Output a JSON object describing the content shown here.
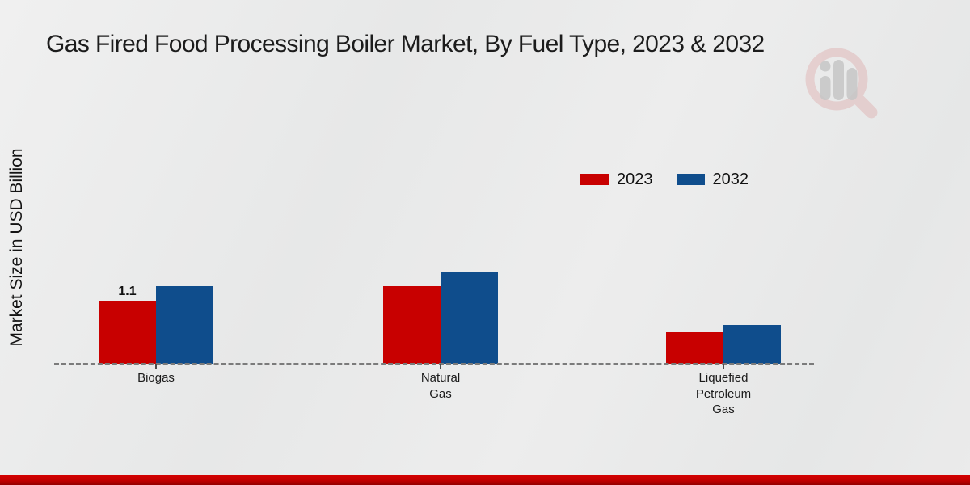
{
  "chart_data": {
    "type": "bar",
    "title": "Gas Fired Food Processing Boiler Market, By Fuel Type, 2023 & 2032",
    "xlabel": "",
    "ylabel": "Market Size in USD Billion",
    "categories": [
      "Biogas",
      "Natural\nGas",
      "Liquefied\nPetroleum\nGas"
    ],
    "series": [
      {
        "name": "2023",
        "color": "#c80000",
        "values": [
          1.1,
          1.35,
          0.55
        ],
        "data_labels": [
          "1.1",
          null,
          null
        ]
      },
      {
        "name": "2032",
        "color": "#0f4d8c",
        "values": [
          1.35,
          1.6,
          0.67
        ],
        "data_labels": [
          null,
          null,
          null
        ]
      }
    ],
    "ylim": [
      0,
      2.8
    ],
    "grid": false,
    "legend_position": "upper right",
    "axis_style": "dashed baseline only, no y-axis ticks",
    "annotations": [
      "1.1 label above Biogas 2023 bar"
    ]
  },
  "branding": {
    "watermark_icon": "magnifier-bar-chart-logo",
    "footer_bar_color": "#c00000"
  },
  "colors": {
    "background": "#e9e9e9",
    "series_2023": "#c80000",
    "series_2032": "#0f4d8c",
    "baseline_dash": "#7b7b7b",
    "text": "#1c1c1c"
  }
}
